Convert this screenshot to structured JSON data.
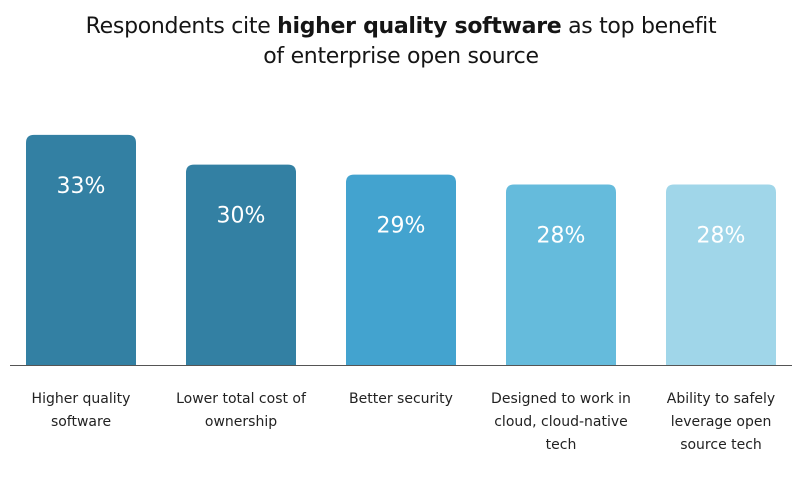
{
  "chart_data": {
    "type": "bar",
    "title_parts": [
      "Respondents cite ",
      "higher quality software",
      " as top benefit",
      "of enterprise open source"
    ],
    "categories": [
      "Higher quality software",
      "Lower total cost of ownership",
      "Better security",
      "Designed to work in cloud, cloud-native tech",
      "Ability to safely leverage open source tech"
    ],
    "values": [
      33,
      30,
      29,
      28,
      28
    ],
    "labels": [
      "33%",
      "30%",
      "29%",
      "28%",
      "28%"
    ],
    "colors": [
      "#3380a3",
      "#3380a3",
      "#43a3cf",
      "#65bbdc",
      "#a0d6e9"
    ],
    "xlabel": "",
    "ylabel": "",
    "ylim": [
      9.8,
      34
    ],
    "grid": false,
    "legend": "none"
  }
}
